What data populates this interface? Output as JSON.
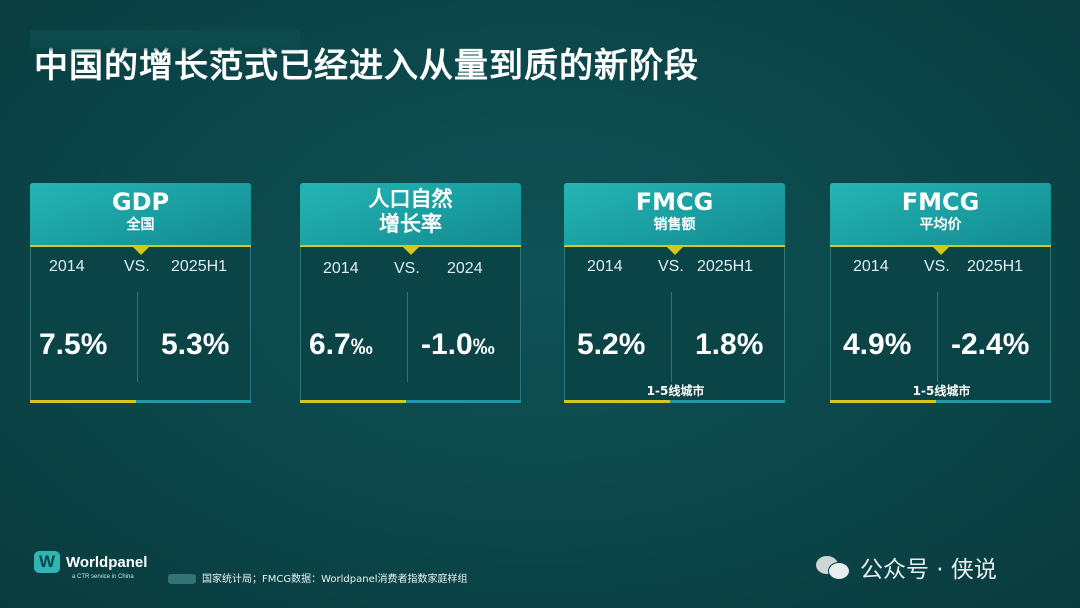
{
  "title": "中国的增长范式已经进入从量到质的新阶段",
  "cards": [
    {
      "head_main": "GDP",
      "head_sub": "全国",
      "left_label": "2014",
      "vs": "VS.",
      "right_label": "2025H1",
      "left_value": "7.5%",
      "right_value": "5.3%",
      "note": ""
    },
    {
      "head_main": "人口自然",
      "head_sub": "增长率",
      "left_label": "2014",
      "vs": "VS.",
      "right_label": "2024",
      "left_value": "6.7",
      "left_unit": "‰",
      "right_value": "-1.0",
      "right_unit": "‰",
      "note": ""
    },
    {
      "head_main": "FMCG",
      "head_sub": "销售额",
      "left_label": "2014",
      "vs": "VS.",
      "right_label": "2025H1",
      "left_value": "5.2%",
      "right_value": "1.8%",
      "note": "1-5线城市"
    },
    {
      "head_main": "FMCG",
      "head_sub": "平均价",
      "left_label": "2014",
      "vs": "VS.",
      "right_label": "2025H1",
      "left_value": "4.9%",
      "right_value": "-2.4%",
      "note": "1-5线城市"
    }
  ],
  "footer": {
    "logo_letter": "W",
    "logo_name": "Worldpanel",
    "logo_tagline": "a CTR service in China",
    "source": "国家统计局；FMCG数据：Worldpanel消费者指数家庭样组",
    "watermark": "公众号 · 侠说"
  },
  "colors": {
    "background": "#0b4548",
    "header": "#1a9ea1",
    "accent": "#d3c81c",
    "bar_rest": "#1f9aa3"
  }
}
